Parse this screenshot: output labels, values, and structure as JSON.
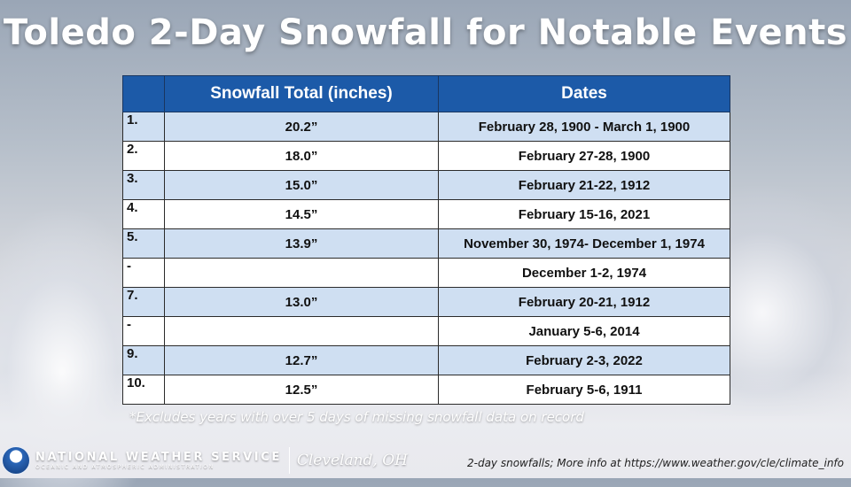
{
  "title": "Toledo 2-Day Snowfall for Notable Events",
  "table": {
    "headers": [
      "",
      "Snowfall Total (inches)",
      "Dates"
    ],
    "rows": [
      {
        "rank": "1.",
        "total": "20.2”",
        "dates": "February 28, 1900 - March 1, 1900"
      },
      {
        "rank": "2.",
        "total": "18.0”",
        "dates": "February 27-28, 1900"
      },
      {
        "rank": "3.",
        "total": "15.0”",
        "dates": "February 21-22, 1912"
      },
      {
        "rank": "4.",
        "total": "14.5”",
        "dates": "February 15-16, 2021"
      },
      {
        "rank": "5.",
        "total": "13.9”",
        "dates": "November 30, 1974- December 1, 1974"
      },
      {
        "rank": "-",
        "total": "",
        "dates": "December 1-2, 1974"
      },
      {
        "rank": "7.",
        "total": "13.0”",
        "dates": "February 20-21, 1912"
      },
      {
        "rank": "-",
        "total": "",
        "dates": "January 5-6, 2014"
      },
      {
        "rank": "9.",
        "total": "12.7”",
        "dates": "February 2-3, 2022"
      },
      {
        "rank": "10.",
        "total": "12.5”",
        "dates": "February 5-6, 1911"
      }
    ]
  },
  "note": "*Excludes years with over 5 days of missing snowfall data on record",
  "footer": {
    "agency": "NATIONAL WEATHER SERVICE",
    "agency_sub": "OCEANIC AND ATMOSPHERIC ADMINISTRATION",
    "office": "Cleveland, OH",
    "info": "2-day snowfalls; More info at https://www.weather.gov/cle/climate_info"
  },
  "colors": {
    "header_bg": "#1c5aa8",
    "row_shaded": "#cfdff2",
    "row_plain": "#ffffff"
  }
}
